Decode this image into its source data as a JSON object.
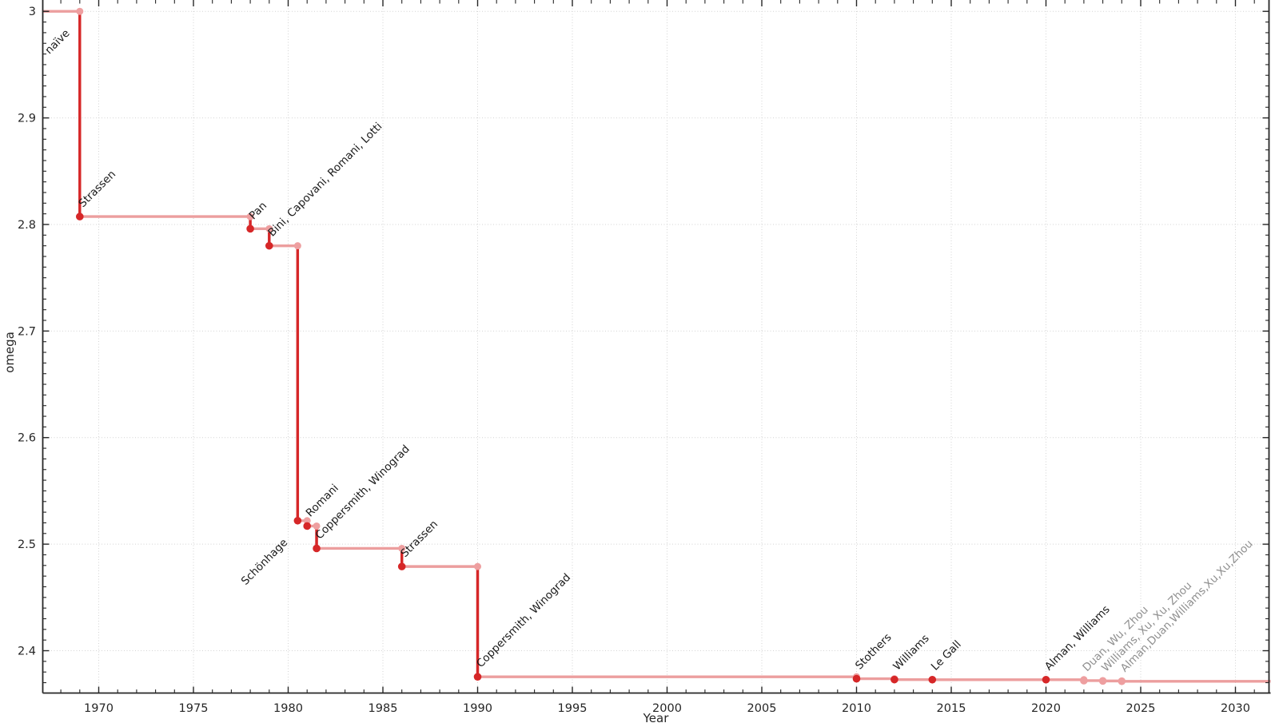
{
  "chart_data": {
    "type": "line",
    "style": "step-post",
    "title": "",
    "xlabel": "Year",
    "ylabel": "omega",
    "legend": "none",
    "grid": "major-dotted",
    "xlim": [
      1967.05,
      2031.9
    ],
    "ylim": [
      2.36,
      3.011
    ],
    "x_major_ticks": [
      1970,
      1975,
      1980,
      1985,
      1990,
      1995,
      2000,
      2005,
      2010,
      2015,
      2020,
      2025,
      2030
    ],
    "x_minor_tick_step_years": 1,
    "y_major_ticks": [
      2.4,
      2.5,
      2.6,
      2.7,
      2.8,
      2.9,
      3
    ],
    "y_major_tick_labels": [
      "2.4",
      "2.5",
      "2.6",
      "2.7",
      "2.8",
      "2.9",
      "3"
    ],
    "y_minor_tick_step": 0.01,
    "baseline": {
      "label": "naïve",
      "omega": 3,
      "label_position": "below",
      "label_color_role": "historical"
    },
    "points": [
      {
        "label": "Strassen",
        "year": 1969,
        "omega": 2.8074,
        "recent": false,
        "label_position": "above"
      },
      {
        "label": "Pan",
        "year": 1978,
        "omega": 2.796,
        "recent": false,
        "label_position": "above"
      },
      {
        "label": "Bini, Capovani, Romani, Lotti",
        "year": 1979,
        "omega": 2.78,
        "recent": false,
        "label_position": "above"
      },
      {
        "label": "Schönhage",
        "year": 1980.5,
        "omega": 2.522,
        "recent": false,
        "label_position": "below"
      },
      {
        "label": "Romani",
        "year": 1981,
        "omega": 2.517,
        "recent": false,
        "label_position": "above"
      },
      {
        "label": "Coppersmith, Winograd",
        "year": 1981.5,
        "omega": 2.496,
        "recent": false,
        "label_position": "above"
      },
      {
        "label": "Strassen",
        "year": 1986,
        "omega": 2.479,
        "recent": false,
        "label_position": "above"
      },
      {
        "label": "Coppersmith, Winograd",
        "year": 1990,
        "omega": 2.3755,
        "recent": false,
        "label_position": "above"
      },
      {
        "label": "Stothers",
        "year": 2010,
        "omega": 2.3737,
        "recent": false,
        "label_position": "above"
      },
      {
        "label": "Williams",
        "year": 2012,
        "omega": 2.3729,
        "recent": false,
        "label_position": "above"
      },
      {
        "label": "Le Gall",
        "year": 2014,
        "omega": 2.3728,
        "recent": false,
        "label_position": "above"
      },
      {
        "label": "Alman, Williams",
        "year": 2020,
        "omega": 2.3728,
        "recent": false,
        "label_position": "above"
      },
      {
        "label": "Duan, Wu, Zhou",
        "year": 2022,
        "omega": 2.3719,
        "recent": true,
        "label_position": "above"
      },
      {
        "label": "Williams, Xu, Xu, Zhou",
        "year": 2023,
        "omega": 2.3716,
        "recent": true,
        "label_position": "above"
      },
      {
        "label": "Alman,Duan,Williams,Xu,Xu,Zhou",
        "year": 2024,
        "omega": 2.3713,
        "recent": true,
        "label_position": "above"
      }
    ],
    "colors": {
      "line_dark": "#d62728",
      "line_light": "#ec9e9e",
      "marker_dark": "#d62728",
      "marker_light": "#ee9fa0",
      "label_historical": "#1a1a1a",
      "label_recent": "#8f8f8f",
      "grid": "#cccccc",
      "axis": "#262626",
      "tick_label": "#262626"
    }
  }
}
